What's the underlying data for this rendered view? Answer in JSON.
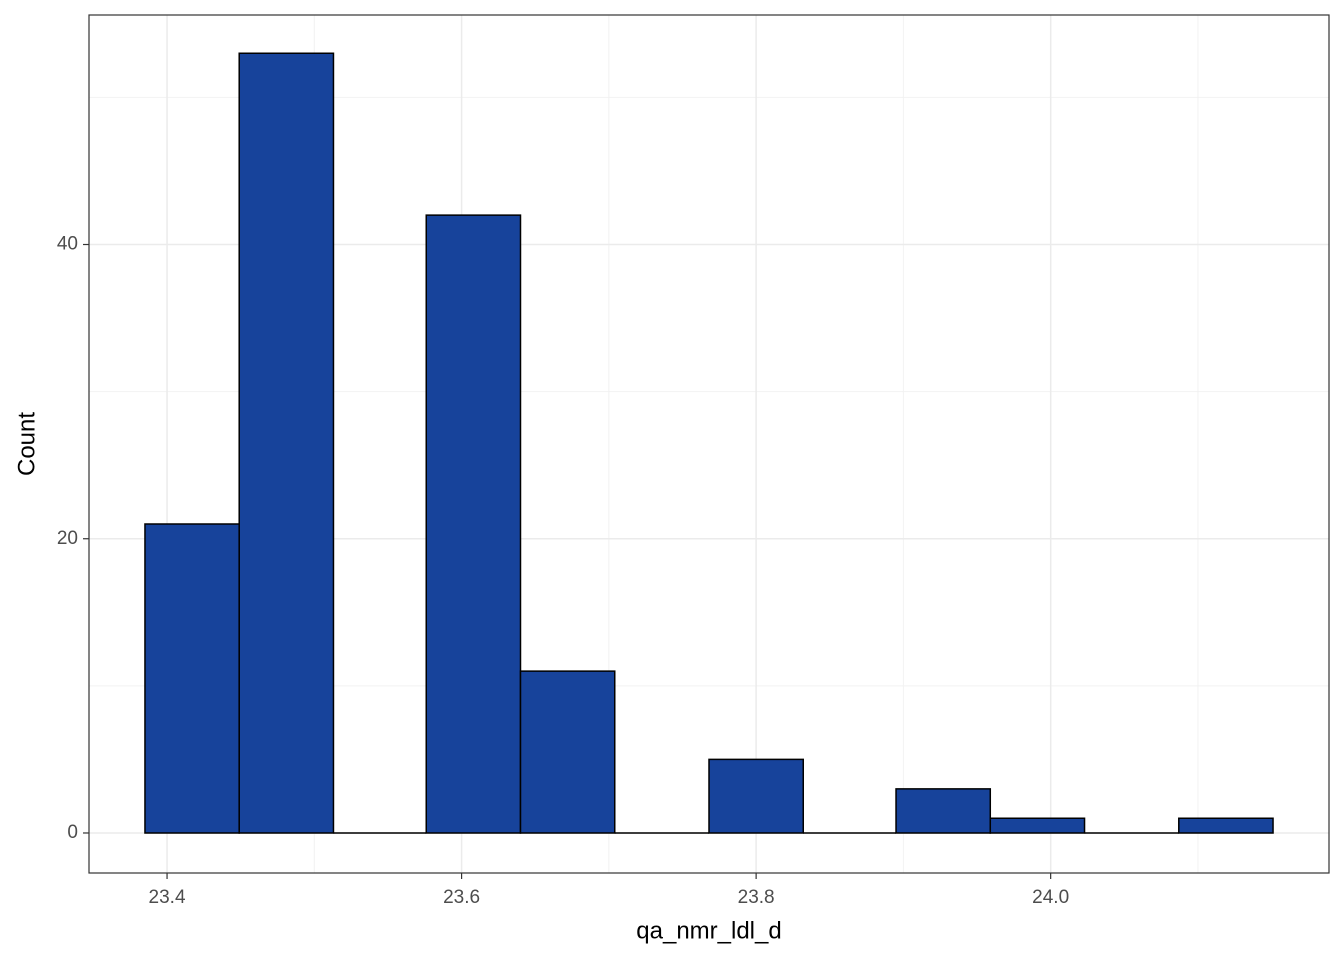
{
  "chart_data": {
    "type": "histogram",
    "x_label": "qa_nmr_ldl_d",
    "y_label": "Count",
    "bins": [
      23.385,
      23.449,
      23.513,
      23.576,
      23.64,
      23.704,
      23.768,
      23.832,
      23.895,
      23.959,
      24.023,
      24.087,
      24.151
    ],
    "values": [
      21,
      53,
      0,
      42,
      11,
      0,
      5,
      0,
      3,
      1,
      0,
      1
    ],
    "color": "#17439b",
    "xlim": [
      23.347,
      24.189
    ],
    "xticks": [
      23.4,
      23.6,
      23.8,
      {
        "value": 24,
        "label": "24.0"
      }
    ],
    "ylim": [
      -2.72,
      55.6
    ],
    "yticks": [
      0,
      20,
      40
    ],
    "grid": true,
    "minor_grid": true
  }
}
